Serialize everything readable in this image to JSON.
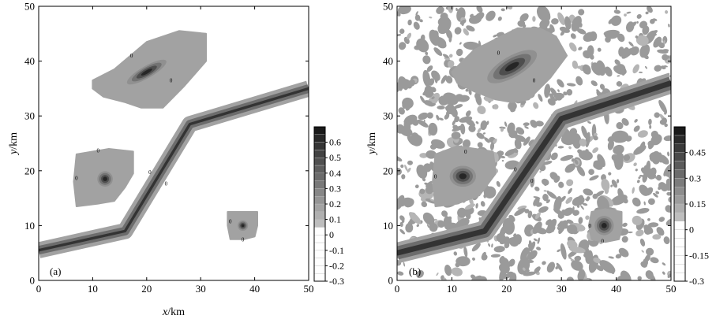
{
  "chart_data": [
    {
      "type": "contour",
      "panel_label": "(a)",
      "xlabel_var": "x",
      "xlabel_unit": "/km",
      "ylabel_var": "y",
      "ylabel_unit": "/km",
      "xlim": [
        0,
        50
      ],
      "ylim": [
        0,
        50
      ],
      "xticks": [
        0,
        10,
        20,
        30,
        40,
        50
      ],
      "yticks": [
        0,
        10,
        20,
        30,
        40,
        50
      ],
      "colorbar": {
        "range": [
          -0.3,
          0.7
        ],
        "ticks": [
          {
            "value": 0.6,
            "label": "0.6"
          },
          {
            "value": 0.5,
            "label": "0.5"
          },
          {
            "value": 0.4,
            "label": "0.4"
          },
          {
            "value": 0.3,
            "label": "0.3"
          },
          {
            "value": 0.2,
            "label": "0.2"
          },
          {
            "value": 0.1,
            "label": "0.1"
          },
          {
            "value": 0.0,
            "label": "0"
          },
          {
            "value": -0.1,
            "label": "-0.1"
          },
          {
            "value": -0.2,
            "label": "-0.2"
          },
          {
            "value": -0.3,
            "label": "-0.3"
          }
        ],
        "band_step": 0.05,
        "zero_gap": true
      },
      "contour_label": "0",
      "fault_path": [
        [
          0,
          5.5
        ],
        [
          16,
          9
        ],
        [
          28,
          28.5
        ],
        [
          50,
          35
        ]
      ],
      "fault_widths": {
        "outer": 3.0,
        "mid": 1.6,
        "core": 0.5
      },
      "noise": false,
      "blobs": [
        {
          "name": "northern-anomaly",
          "outline": [
            [
              10,
              36.5
            ],
            [
              14,
              38.5
            ],
            [
              20,
              43.5
            ],
            [
              26,
              45.5
            ],
            [
              31,
              45
            ],
            [
              31,
              40
            ],
            [
              27,
              35.5
            ],
            [
              23,
              31.5
            ],
            [
              19,
              31.5
            ],
            [
              16,
              32.5
            ],
            [
              12,
              33.5
            ],
            [
              10,
              35
            ]
          ],
          "peak": [
            20,
            38
          ],
          "peak_rx": 2.6,
          "peak_ry": 0.7,
          "peak_rotate": -30,
          "labels": [
            [
              17.2,
              41
            ],
            [
              24.5,
              36.5
            ]
          ]
        },
        {
          "name": "western-anomaly",
          "outline": [
            [
              7,
              23
            ],
            [
              13,
              24
            ],
            [
              17.5,
              23.5
            ],
            [
              17.5,
              19.5
            ],
            [
              16,
              17
            ],
            [
              14,
              14.5
            ],
            [
              11,
              14
            ],
            [
              7,
              13.5
            ],
            [
              6.5,
              18
            ]
          ],
          "peak": [
            12.3,
            18.5
          ],
          "peak_rx": 0.9,
          "peak_ry": 0.9,
          "peak_rotate": 0,
          "labels": [
            [
              11,
              23.7
            ],
            [
              7,
              18.7
            ]
          ]
        },
        {
          "name": "southern-anomaly",
          "outline": [
            [
              35,
              12.5
            ],
            [
              38,
              12.5
            ],
            [
              40.5,
              12.5
            ],
            [
              40.5,
              10
            ],
            [
              40,
              8
            ],
            [
              38,
              7.5
            ],
            [
              35.5,
              7.5
            ],
            [
              35,
              10
            ]
          ],
          "peak": [
            37.8,
            10
          ],
          "peak_rx": 0.6,
          "peak_ry": 0.6,
          "peak_rotate": 0,
          "labels": [
            [
              35.5,
              10.8
            ],
            [
              37.8,
              7.5
            ]
          ]
        }
      ]
    },
    {
      "type": "contour",
      "panel_label": "(b)",
      "xlabel_var": "",
      "xlabel_unit": "",
      "ylabel_var": "y",
      "ylabel_unit": "/km",
      "xlim": [
        0,
        50
      ],
      "ylim": [
        0,
        50
      ],
      "xticks": [
        0,
        10,
        20,
        30,
        40,
        50
      ],
      "yticks": [
        0,
        10,
        20,
        30,
        40,
        50
      ],
      "colorbar": {
        "range": [
          -0.3,
          0.6
        ],
        "ticks": [
          {
            "value": 0.45,
            "label": "0.45"
          },
          {
            "value": 0.3,
            "label": "0.3"
          },
          {
            "value": 0.15,
            "label": "0.15"
          },
          {
            "value": 0.0,
            "label": "0"
          },
          {
            "value": -0.15,
            "label": "-0.15"
          },
          {
            "value": -0.3,
            "label": "-0.3"
          }
        ],
        "band_step": 0.05,
        "zero_gap": true
      },
      "contour_label": "0",
      "fault_path": [
        [
          0,
          5
        ],
        [
          16,
          9
        ],
        [
          30,
          29.5
        ],
        [
          50,
          36
        ]
      ],
      "fault_widths": {
        "outer": 3.8,
        "mid": 2.4,
        "core": 1.0
      },
      "noise": true,
      "blobs": [
        {
          "name": "northern-anomaly",
          "outline": [
            [
              10,
              38
            ],
            [
              14,
              42
            ],
            [
              18,
              44
            ],
            [
              22,
              46
            ],
            [
              26,
              46
            ],
            [
              29,
              44.5
            ],
            [
              31,
              41
            ],
            [
              28,
              37
            ],
            [
              24,
              33
            ],
            [
              21,
              32.5
            ],
            [
              18,
              33
            ],
            [
              14,
              34.5
            ],
            [
              11,
              36
            ]
          ],
          "peak": [
            21,
            39
          ],
          "peak_rx": 3.2,
          "peak_ry": 1.2,
          "peak_rotate": -30,
          "labels": [
            [
              18.5,
              41.5
            ],
            [
              25,
              36.5
            ]
          ]
        },
        {
          "name": "western-anomaly",
          "outline": [
            [
              7,
              23
            ],
            [
              11,
              24.5
            ],
            [
              17.5,
              23.5
            ],
            [
              18,
              19.5
            ],
            [
              15,
              15.5
            ],
            [
              11,
              14
            ],
            [
              7,
              13.5
            ],
            [
              6.5,
              18
            ]
          ],
          "peak": [
            12,
            19
          ],
          "peak_rx": 1.5,
          "peak_ry": 1.2,
          "peak_rotate": 0,
          "labels": [
            [
              12.5,
              23.5
            ],
            [
              7,
              19
            ]
          ]
        },
        {
          "name": "southern-anomaly",
          "outline": [
            [
              35.5,
              12.5
            ],
            [
              38,
              13
            ],
            [
              41,
              12.5
            ],
            [
              41,
              9.5
            ],
            [
              40.5,
              7.5
            ],
            [
              38,
              7
            ],
            [
              35.5,
              7.5
            ],
            [
              35,
              10
            ]
          ],
          "peak": [
            37.8,
            10
          ],
          "peak_rx": 1.1,
          "peak_ry": 1.1,
          "peak_rotate": 0,
          "labels": [
            [
              35.2,
              10
            ],
            [
              37.5,
              7.2
            ]
          ]
        }
      ]
    }
  ]
}
